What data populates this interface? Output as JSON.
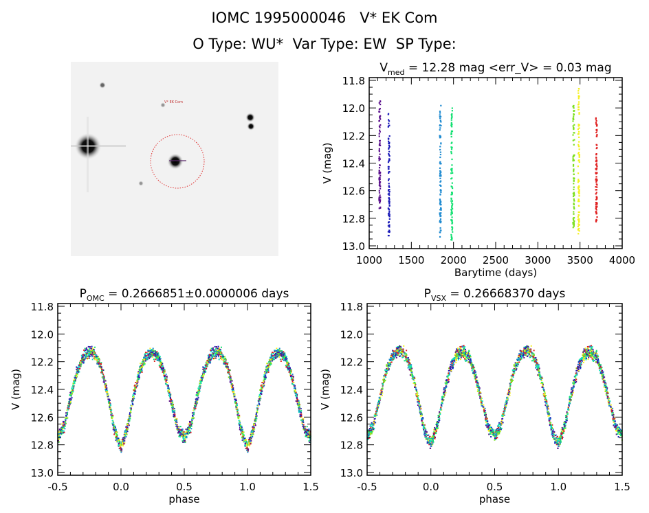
{
  "header": {
    "title": "IOMC 1995000046   V* EK Com",
    "subtitle": "O Type: WU*  Var Type: EW  SP Type:"
  },
  "image": {
    "label": "V* EK Com",
    "ring_color": "#e03030"
  },
  "chart_data": [
    {
      "type": "scatter",
      "title_main": "V",
      "title_sub": "med",
      "title_rest": " = 12.28 mag <err_V> = 0.03 mag",
      "xlabel": "Barytime (days)",
      "ylabel": "V (mag)",
      "xlim": [
        1000,
        4000
      ],
      "ylim": [
        13.0,
        11.8
      ],
      "xticks": [
        "1000",
        "1500",
        "2000",
        "2500",
        "3000",
        "3500",
        "4000"
      ],
      "yticks": [
        "11.8",
        "12.0",
        "12.2",
        "12.4",
        "12.6",
        "12.8",
        "13.0"
      ],
      "series": [
        {
          "time": 1120,
          "vmin": 11.95,
          "vmax": 12.73,
          "color": "#5a0f8c"
        },
        {
          "time": 1230,
          "vmin": 12.04,
          "vmax": 12.93,
          "color": "#1c1cb8"
        },
        {
          "time": 1840,
          "vmin": 11.98,
          "vmax": 12.94,
          "color": "#1e8ad0"
        },
        {
          "time": 1975,
          "vmin": 11.98,
          "vmax": 12.96,
          "color": "#10e070"
        },
        {
          "time": 3420,
          "vmin": 11.98,
          "vmax": 12.89,
          "color": "#7ee020"
        },
        {
          "time": 3480,
          "vmin": 11.86,
          "vmax": 12.93,
          "color": "#f4f020"
        },
        {
          "time": 3690,
          "vmin": 12.06,
          "vmax": 12.83,
          "color": "#e02020"
        }
      ]
    },
    {
      "type": "scatter",
      "title_main": "P",
      "title_sub": "OMC",
      "title_rest": " = 0.2666851±0.0000006 days",
      "xlabel": "phase",
      "ylabel": "V (mag)",
      "xlim": [
        -0.5,
        1.5
      ],
      "ylim": [
        13.0,
        11.8
      ],
      "xticks": [
        "-0.5",
        "0.0",
        "0.5",
        "1.0",
        "1.5"
      ],
      "yticks": [
        "11.8",
        "12.0",
        "12.2",
        "12.4",
        "12.6",
        "12.8",
        "13.0"
      ],
      "phase": [
        0,
        0.05,
        0.1,
        0.15,
        0.2,
        0.25,
        0.3,
        0.35,
        0.4,
        0.45,
        0.5,
        0.55,
        0.6,
        0.65,
        0.7,
        0.75,
        0.8,
        0.85,
        0.9,
        0.95
      ],
      "mag": [
        12.82,
        12.68,
        12.45,
        12.26,
        12.16,
        12.13,
        12.17,
        12.3,
        12.5,
        12.68,
        12.75,
        12.67,
        12.47,
        12.28,
        12.17,
        12.13,
        12.15,
        12.26,
        12.46,
        12.7
      ]
    },
    {
      "type": "scatter",
      "title_main": "P",
      "title_sub": "VSX",
      "title_rest": " = 0.26668370 days",
      "xlabel": "phase",
      "ylabel": "V (mag)",
      "xlim": [
        -0.5,
        1.5
      ],
      "ylim": [
        13.0,
        11.8
      ],
      "xticks": [
        "-0.5",
        "0.0",
        "0.5",
        "1.0",
        "1.5"
      ],
      "yticks": [
        "11.8",
        "12.0",
        "12.2",
        "12.4",
        "12.6",
        "12.8",
        "13.0"
      ],
      "phase": [
        0,
        0.05,
        0.1,
        0.15,
        0.2,
        0.25,
        0.3,
        0.35,
        0.4,
        0.45,
        0.5,
        0.55,
        0.6,
        0.65,
        0.7,
        0.75,
        0.8,
        0.85,
        0.9,
        0.95
      ],
      "mag": [
        12.8,
        12.66,
        12.44,
        12.25,
        12.15,
        12.13,
        12.17,
        12.3,
        12.5,
        12.67,
        12.74,
        12.66,
        12.46,
        12.27,
        12.16,
        12.12,
        12.15,
        12.27,
        12.47,
        12.7
      ]
    }
  ]
}
